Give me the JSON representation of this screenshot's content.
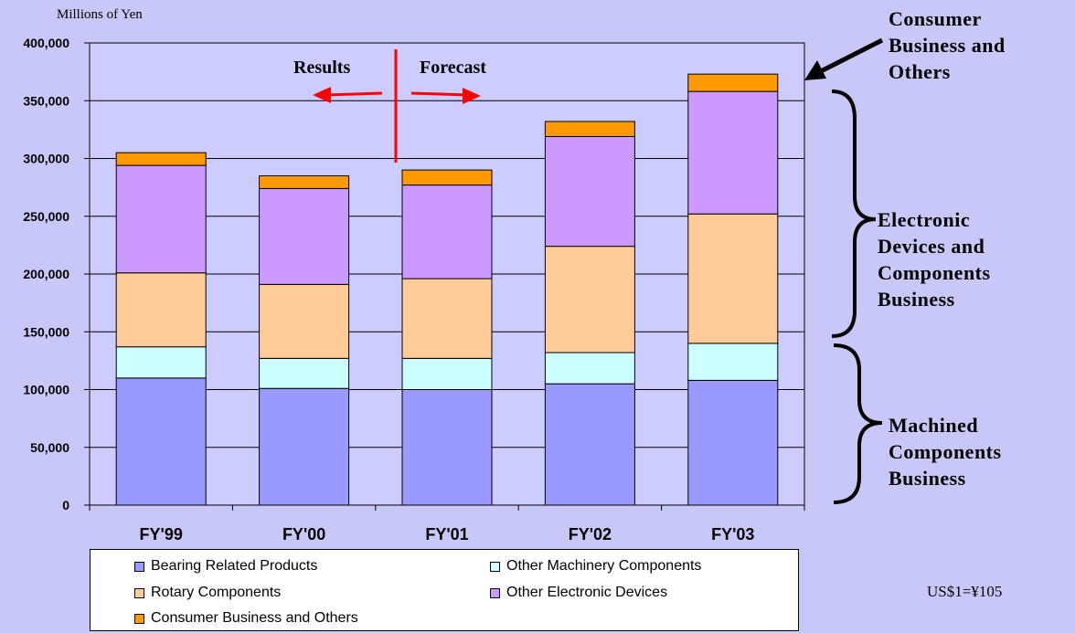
{
  "unit_label": "Millions of Yen",
  "fx_note": "US$1=¥105",
  "annotations": {
    "results": "Results",
    "forecast": "Forecast",
    "consumer": [
      "Consumer",
      "Business and",
      "Others"
    ],
    "electronic": [
      "Electronic",
      "Devices and",
      "Components",
      "Business"
    ],
    "machined": [
      "Machined",
      "Components",
      "Business"
    ]
  },
  "legend": [
    {
      "label": "Bearing Related Products",
      "color": "#9999ff"
    },
    {
      "label": "Other Machinery Components",
      "color": "#ccffff"
    },
    {
      "label": "Rotary Components",
      "color": "#ffcc99"
    },
    {
      "label": "Other Electronic Devices",
      "color": "#cc99ff"
    },
    {
      "label": "Consumer Business and Others",
      "color": "#ff9900"
    }
  ],
  "chart_data": {
    "type": "bar",
    "stacked": true,
    "categories": [
      "FY'99",
      "FY'00",
      "FY'01",
      "FY'02",
      "FY'03"
    ],
    "ylabel": "Millions of Yen",
    "ylim": [
      0,
      400000
    ],
    "yticks": [
      "0",
      "50,000",
      "100,000",
      "150,000",
      "200,000",
      "250,000",
      "300,000",
      "350,000",
      "400,000"
    ],
    "grid": true,
    "series": [
      {
        "name": "Bearing Related Products",
        "color": "#9999ff",
        "values": [
          110000,
          101000,
          100000,
          105000,
          108000
        ]
      },
      {
        "name": "Other Machinery Components",
        "color": "#ccffff",
        "values": [
          27000,
          26000,
          27000,
          27000,
          32000
        ]
      },
      {
        "name": "Rotary Components",
        "color": "#ffcc99",
        "values": [
          64000,
          64000,
          69000,
          92000,
          112000
        ]
      },
      {
        "name": "Other Electronic Devices",
        "color": "#cc99ff",
        "values": [
          93000,
          83000,
          81000,
          95000,
          106000
        ]
      },
      {
        "name": "Consumer Business and Others",
        "color": "#ff9900",
        "values": [
          11000,
          11000,
          13000,
          13000,
          15000
        ]
      }
    ]
  }
}
